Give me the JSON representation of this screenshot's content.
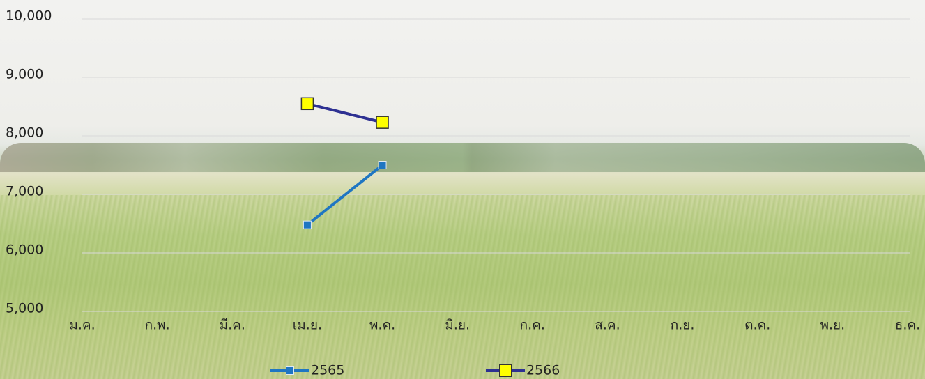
{
  "chart_data": {
    "type": "line",
    "categories": [
      "ม.ค.",
      "ก.พ.",
      "มี.ค.",
      "เม.ย.",
      "พ.ค.",
      "มิ.ย.",
      "ก.ค.",
      "ส.ค.",
      "ก.ย.",
      "ต.ค.",
      "พ.ย.",
      "ธ.ค."
    ],
    "series": [
      {
        "name": "2565",
        "color": "#1f76c2",
        "marker_color": "#1f76c2",
        "values": [
          null,
          null,
          null,
          6480,
          7500,
          null,
          null,
          null,
          null,
          null,
          null,
          null
        ]
      },
      {
        "name": "2566",
        "color": "#2e3192",
        "marker_color": "#ffff00",
        "values": [
          null,
          null,
          null,
          8550,
          8230,
          null,
          null,
          null,
          null,
          null,
          null,
          null
        ]
      }
    ],
    "ylim": [
      5000,
      10000
    ],
    "yticks": [
      {
        "value": 5000,
        "label": "5,000"
      },
      {
        "value": 6000,
        "label": "6,000"
      },
      {
        "value": 7000,
        "label": "7,000"
      },
      {
        "value": 8000,
        "label": "8,000"
      },
      {
        "value": 9000,
        "label": "9,000"
      },
      {
        "value": 10000,
        "label": "10,000"
      }
    ],
    "grid": true
  }
}
